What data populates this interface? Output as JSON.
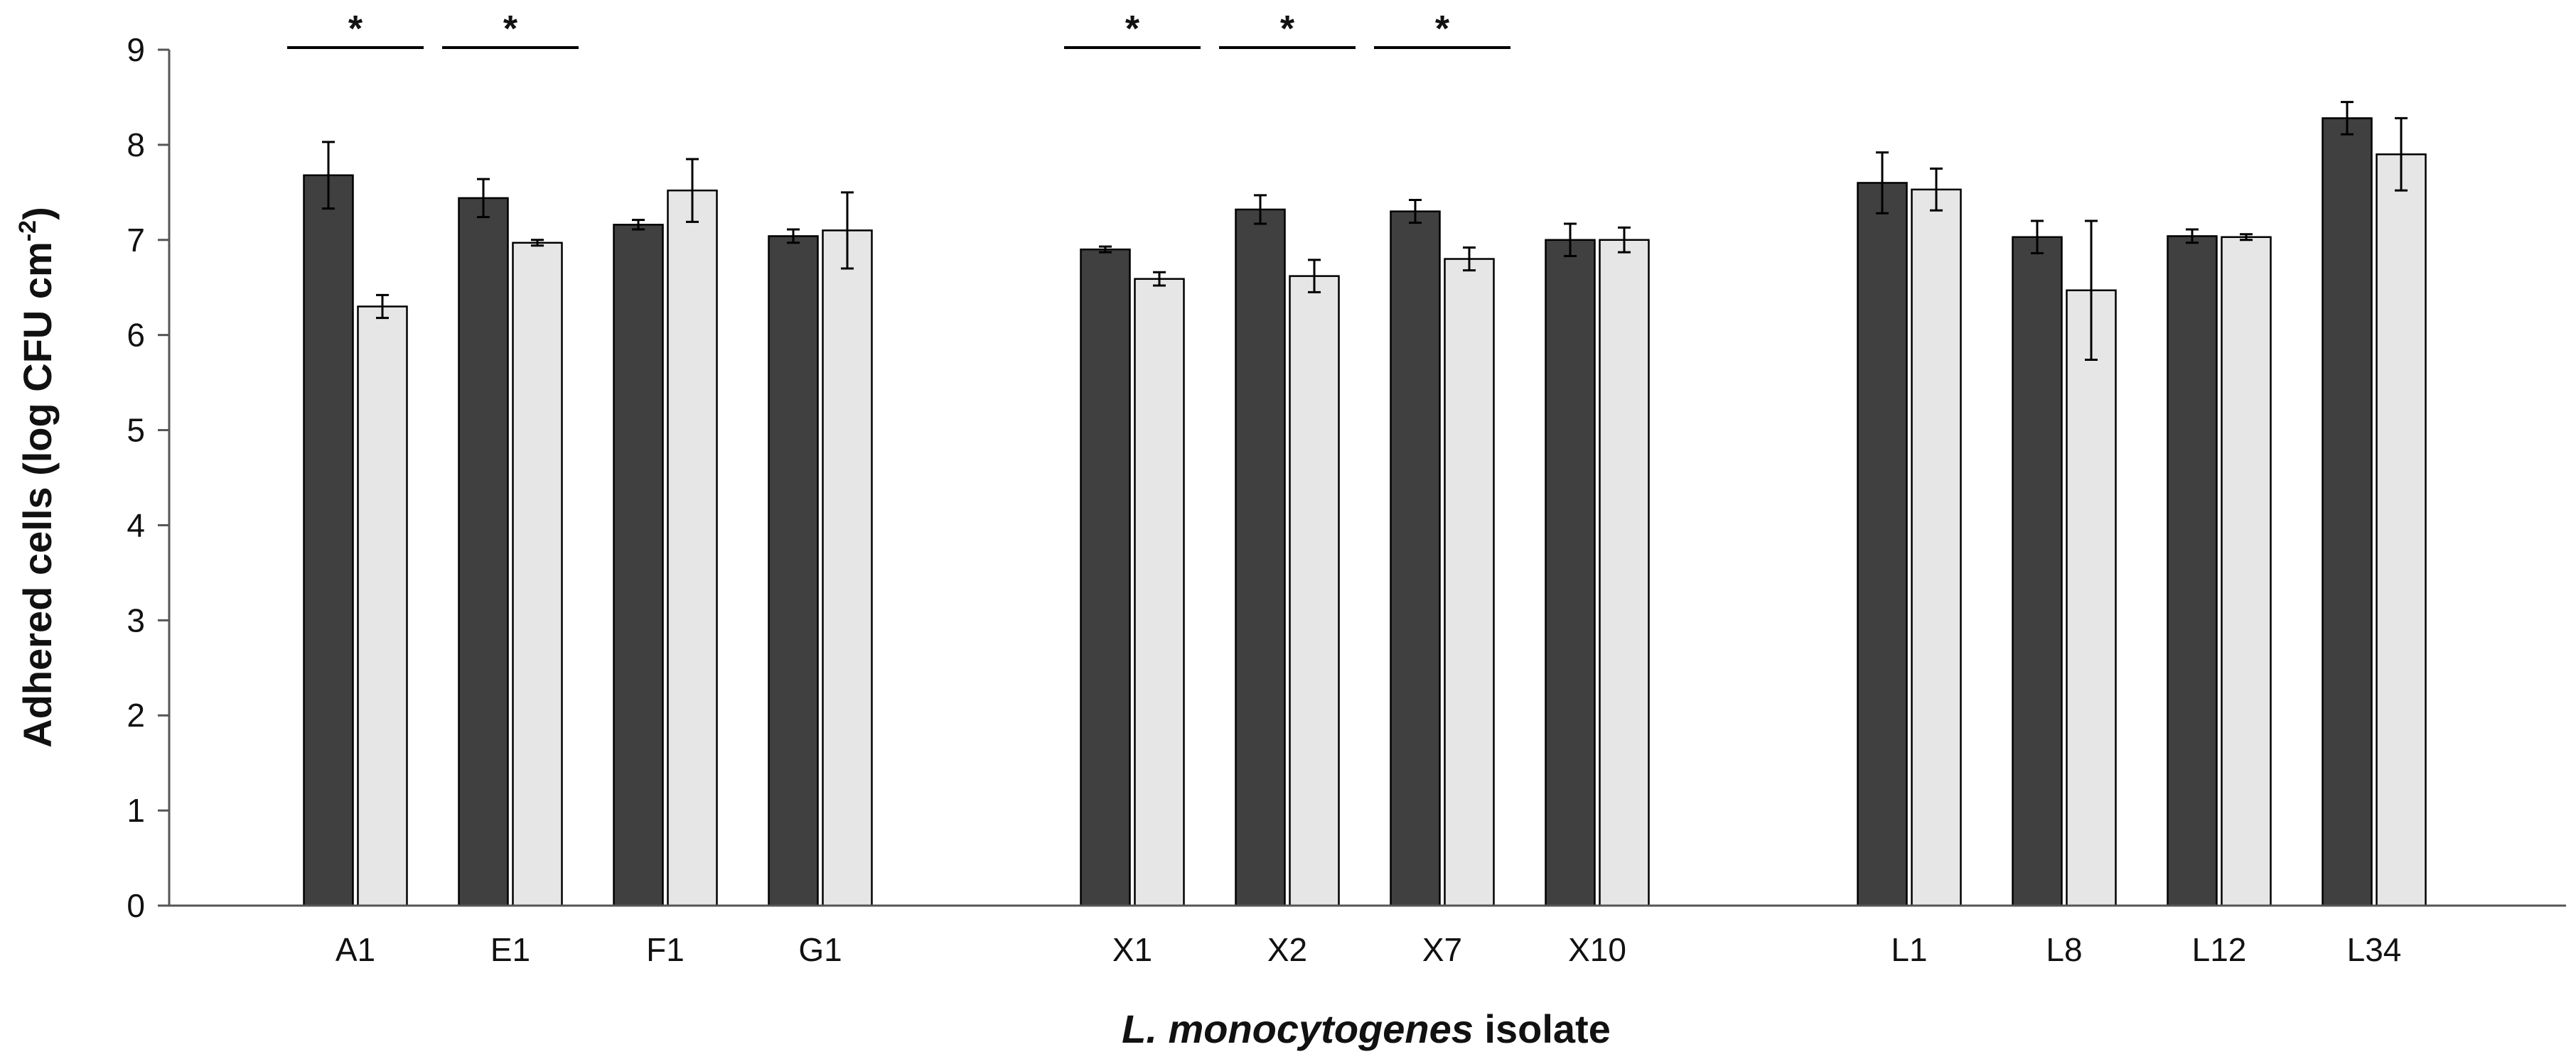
{
  "chart_data": {
    "type": "bar",
    "xlabel_italic": "L. monocytogenes",
    "xlabel_rest": " isolate",
    "ylabel": "Adhered cells (log CFU cm",
    "ylabel_sup": "-2",
    "ylabel_close": ")",
    "ylim": [
      0,
      9
    ],
    "yticks": [
      0,
      1,
      2,
      3,
      4,
      5,
      6,
      7,
      8,
      9
    ],
    "grid": false,
    "legend": "none",
    "colors": {
      "series_a": "#404040",
      "series_b": "#e6e6e6",
      "outline": "#000000"
    },
    "groups": [
      {
        "categories": [
          "A1",
          "E1",
          "F1",
          "G1"
        ]
      },
      {
        "categories": [
          "X1",
          "X2",
          "X7",
          "X10"
        ]
      },
      {
        "categories": [
          "L1",
          "L8",
          "L12",
          "L34"
        ]
      }
    ],
    "series": [
      {
        "values": [
          7.68,
          7.44,
          7.16,
          7.04,
          6.9,
          7.32,
          7.3,
          7.0,
          7.6,
          7.03,
          7.04,
          8.28
        ],
        "errors": [
          0.35,
          0.2,
          0.05,
          0.07,
          0.03,
          0.15,
          0.12,
          0.17,
          0.32,
          0.17,
          0.07,
          0.17
        ]
      },
      {
        "values": [
          6.3,
          6.97,
          7.52,
          7.1,
          6.59,
          6.62,
          6.8,
          7.0,
          7.53,
          6.47,
          7.03,
          7.9
        ],
        "errors": [
          0.12,
          0.03,
          0.33,
          0.4,
          0.07,
          0.17,
          0.12,
          0.13,
          0.22,
          0.73,
          0.03,
          0.38
        ]
      }
    ],
    "significance": [
      {
        "category": "A1",
        "label": "*"
      },
      {
        "category": "E1",
        "label": "*"
      },
      {
        "category": "X1",
        "label": "*"
      },
      {
        "category": "X2",
        "label": "*"
      },
      {
        "category": "X7",
        "label": "*"
      }
    ]
  }
}
